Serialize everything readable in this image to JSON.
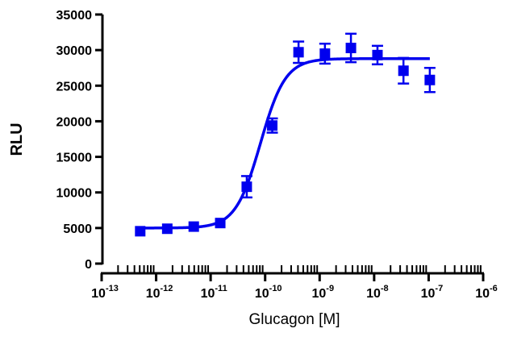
{
  "chart_data": {
    "type": "scatter",
    "title": "",
    "xlabel": "Glucagon [M]",
    "ylabel": "RLU",
    "x_scale": "log",
    "xlim": [
      1e-13,
      1e-06
    ],
    "ylim": [
      0,
      35000
    ],
    "x_tick_labels": [
      {
        "base": "10",
        "exp": "-13"
      },
      {
        "base": "10",
        "exp": "-12"
      },
      {
        "base": "10",
        "exp": "-11"
      },
      {
        "base": "10",
        "exp": "-10"
      },
      {
        "base": "10",
        "exp": "-9"
      },
      {
        "base": "10",
        "exp": "-8"
      },
      {
        "base": "10",
        "exp": "-7"
      },
      {
        "base": "10",
        "exp": "-6"
      }
    ],
    "y_tick_labels": [
      "0",
      "5000",
      "10000",
      "15000",
      "20000",
      "25000",
      "30000",
      "35000"
    ],
    "grid": false,
    "legend": "none",
    "series": [
      {
        "color": "#0000ee",
        "marker": "square",
        "points": [
          {
            "x": 5.1e-13,
            "y": 4550,
            "err": 0
          },
          {
            "x": 1.6e-12,
            "y": 4900,
            "err": 0
          },
          {
            "x": 4.9e-12,
            "y": 5200,
            "err": 0
          },
          {
            "x": 1.5e-11,
            "y": 5700,
            "err": 0
          },
          {
            "x": 4.6e-11,
            "y": 10800,
            "err": 1500
          },
          {
            "x": 1.35e-10,
            "y": 19400,
            "err": 1000
          },
          {
            "x": 4.1e-10,
            "y": 29700,
            "err": 1500
          },
          {
            "x": 1.25e-09,
            "y": 29500,
            "err": 1400
          },
          {
            "x": 3.75e-09,
            "y": 30300,
            "err": 2000
          },
          {
            "x": 1.15e-08,
            "y": 29300,
            "err": 1300
          },
          {
            "x": 3.45e-08,
            "y": 27100,
            "err": 1800
          },
          {
            "x": 1.05e-07,
            "y": 25800,
            "err": 1700
          }
        ],
        "fit": {
          "model": "sigmoidal dose-response",
          "bottom": 5000,
          "top": 28800,
          "ec50": 8.2e-11,
          "hill": 1.9,
          "x_range": [
            5.1e-13,
            1.05e-07
          ]
        }
      }
    ]
  }
}
